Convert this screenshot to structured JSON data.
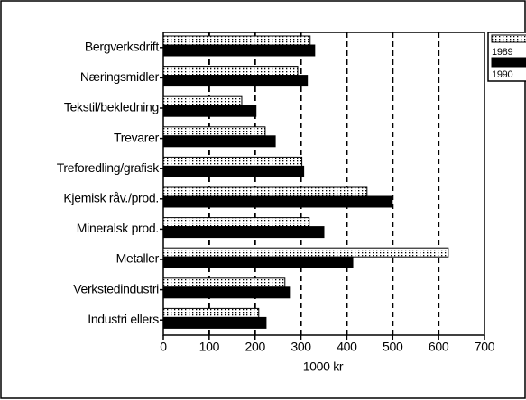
{
  "chart_data": {
    "type": "barh",
    "categories": [
      "Bergverksdrift",
      "Næringsmidler",
      "Tekstil/bekledning",
      "Trevarer",
      "Treforedling/grafisk",
      "Kjemisk råv./prod.",
      "Mineralsk prod.",
      "Metaller",
      "Verkstedindustri",
      "Industri ellers"
    ],
    "series": [
      {
        "name": "1989",
        "color": "#000000",
        "pattern": "dotted",
        "values": [
          320,
          293,
          171,
          222,
          302,
          444,
          318,
          621,
          265,
          208
        ]
      },
      {
        "name": "1990",
        "color": "#000000",
        "pattern": "solid",
        "values": [
          330,
          314,
          202,
          244,
          306,
          499,
          350,
          413,
          275,
          224
        ]
      }
    ],
    "xlabel": "1000 kr",
    "xlim": [
      0,
      700
    ],
    "xticks": [
      0,
      100,
      200,
      300,
      400,
      500,
      600,
      700
    ],
    "grid": true,
    "legend": "right"
  }
}
